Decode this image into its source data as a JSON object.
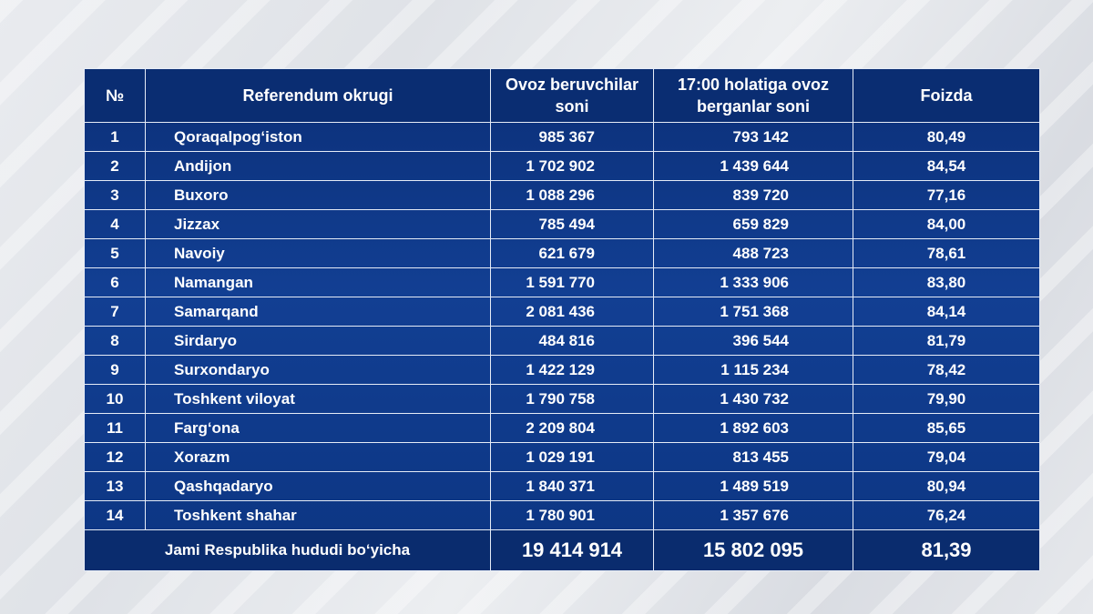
{
  "header": {
    "no": "№",
    "district": "Referendum okrugi",
    "voters": "Ovoz beruvchilar soni",
    "voted": "17:00 holatiga ovoz berganlar soni",
    "percent": "Foizda"
  },
  "rows": [
    {
      "no": "1",
      "district": "Qoraqalpog‘iston",
      "voters": "985 367",
      "voted": "793 142",
      "percent": "80,49"
    },
    {
      "no": "2",
      "district": "Andijon",
      "voters": "1 702 902",
      "voted": "1 439 644",
      "percent": "84,54"
    },
    {
      "no": "3",
      "district": "Buxoro",
      "voters": "1 088 296",
      "voted": "839 720",
      "percent": "77,16"
    },
    {
      "no": "4",
      "district": "Jizzax",
      "voters": "785 494",
      "voted": "659 829",
      "percent": "84,00"
    },
    {
      "no": "5",
      "district": "Navoiy",
      "voters": "621 679",
      "voted": "488 723",
      "percent": "78,61"
    },
    {
      "no": "6",
      "district": "Namangan",
      "voters": "1 591 770",
      "voted": "1 333 906",
      "percent": "83,80"
    },
    {
      "no": "7",
      "district": "Samarqand",
      "voters": "2 081 436",
      "voted": "1 751 368",
      "percent": "84,14"
    },
    {
      "no": "8",
      "district": "Sirdaryo",
      "voters": "484 816",
      "voted": "396 544",
      "percent": "81,79"
    },
    {
      "no": "9",
      "district": "Surxondaryo",
      "voters": "1 422 129",
      "voted": "1 115 234",
      "percent": "78,42"
    },
    {
      "no": "10",
      "district": "Toshkent viloyat",
      "voters": "1 790 758",
      "voted": "1 430 732",
      "percent": "79,90"
    },
    {
      "no": "11",
      "district": "Farg‘ona",
      "voters": "2 209 804",
      "voted": "1 892 603",
      "percent": "85,65"
    },
    {
      "no": "12",
      "district": "Xorazm",
      "voters": "1 029 191",
      "voted": "813 455",
      "percent": "79,04"
    },
    {
      "no": "13",
      "district": "Qashqadaryo",
      "voters": "1 840 371",
      "voted": "1 489 519",
      "percent": "80,94"
    },
    {
      "no": "14",
      "district": "Toshkent shahar",
      "voters": "1 780 901",
      "voted": "1 357 676",
      "percent": "76,24"
    }
  ],
  "total": {
    "label": "Jami Respublika hududi bo‘yicha",
    "voters": "19 414 914",
    "voted": "15 802 095",
    "percent": "81,39"
  },
  "colors": {
    "table_blue": "#123f93",
    "header_blue": "#0a2d72",
    "grid_line": "#e6ecf7",
    "text": "#ffffff"
  }
}
